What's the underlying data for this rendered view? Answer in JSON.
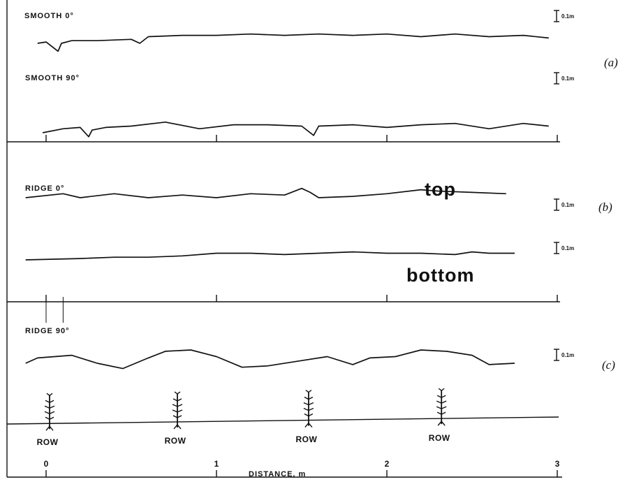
{
  "chart_data": {
    "type": "line",
    "xlabel": "DISTANCE, m",
    "xticks": [
      "0",
      "1",
      "2",
      "3"
    ],
    "xlim": [
      0,
      3
    ],
    "scale_bar_label": "0.1m",
    "panels": [
      {
        "label": "(a)",
        "series": [
          {
            "name": "SMOOTH 0°",
            "x": [
              -0.05,
              0.0,
              0.05,
              0.07,
              0.09,
              0.15,
              0.3,
              0.5,
              0.55,
              0.6,
              0.8,
              1.0,
              1.2,
              1.4,
              1.6,
              1.8,
              2.0,
              2.2,
              2.4,
              2.6,
              2.8,
              2.95
            ],
            "y": [
              0.0,
              0.01,
              -0.04,
              -0.06,
              0.0,
              0.02,
              0.02,
              0.03,
              0.0,
              0.05,
              0.06,
              0.06,
              0.07,
              0.06,
              0.07,
              0.06,
              0.07,
              0.05,
              0.07,
              0.05,
              0.06,
              0.04
            ]
          },
          {
            "name": "SMOOTH 90°",
            "x": [
              -0.02,
              0.1,
              0.2,
              0.25,
              0.27,
              0.35,
              0.5,
              0.7,
              0.9,
              1.1,
              1.3,
              1.5,
              1.57,
              1.6,
              1.8,
              2.0,
              2.2,
              2.4,
              2.6,
              2.8,
              2.95
            ],
            "y": [
              0.0,
              0.03,
              0.04,
              -0.03,
              0.02,
              0.04,
              0.05,
              0.08,
              0.03,
              0.06,
              0.06,
              0.05,
              -0.02,
              0.05,
              0.06,
              0.04,
              0.06,
              0.07,
              0.03,
              0.07,
              0.05
            ]
          }
        ]
      },
      {
        "label": "(b)",
        "annotations": [
          "top",
          "bottom"
        ],
        "series": [
          {
            "name": "RIDGE 0°",
            "x": [
              -0.12,
              0.1,
              0.2,
              0.4,
              0.6,
              0.8,
              1.0,
              1.2,
              1.4,
              1.5,
              1.55,
              1.6,
              1.8,
              2.0,
              2.2,
              2.3,
              2.5,
              2.7
            ],
            "y": [
              0.0,
              0.03,
              0.0,
              0.03,
              0.0,
              0.02,
              0.0,
              0.03,
              0.02,
              0.07,
              0.04,
              0.0,
              0.01,
              0.03,
              0.06,
              0.05,
              0.04,
              0.03
            ]
          },
          {
            "name": "bottom",
            "x": [
              -0.12,
              0.2,
              0.4,
              0.6,
              0.8,
              1.0,
              1.2,
              1.4,
              1.6,
              1.8,
              2.0,
              2.2,
              2.4,
              2.5,
              2.6,
              2.75
            ],
            "y": [
              0.0,
              0.01,
              0.02,
              0.02,
              0.03,
              0.05,
              0.05,
              0.04,
              0.05,
              0.06,
              0.05,
              0.05,
              0.04,
              0.06,
              0.05,
              0.05
            ]
          }
        ]
      },
      {
        "label": "(c)",
        "annotations": [
          "ROW",
          "ROW",
          "ROW",
          "ROW"
        ],
        "row_positions": [
          0.0,
          0.75,
          1.52,
          2.3
        ],
        "series": [
          {
            "name": "RIDGE 90°",
            "x": [
              -0.12,
              -0.05,
              0.05,
              0.15,
              0.3,
              0.45,
              0.6,
              0.7,
              0.85,
              1.0,
              1.15,
              1.3,
              1.5,
              1.65,
              1.8,
              1.9,
              2.05,
              2.2,
              2.35,
              2.5,
              2.6,
              2.75
            ],
            "y": [
              0.0,
              0.04,
              0.05,
              0.06,
              0.0,
              -0.04,
              0.04,
              0.09,
              0.1,
              0.05,
              -0.03,
              -0.02,
              0.02,
              0.05,
              -0.01,
              0.04,
              0.05,
              0.1,
              0.09,
              0.06,
              -0.01,
              0.0
            ]
          }
        ]
      }
    ]
  }
}
